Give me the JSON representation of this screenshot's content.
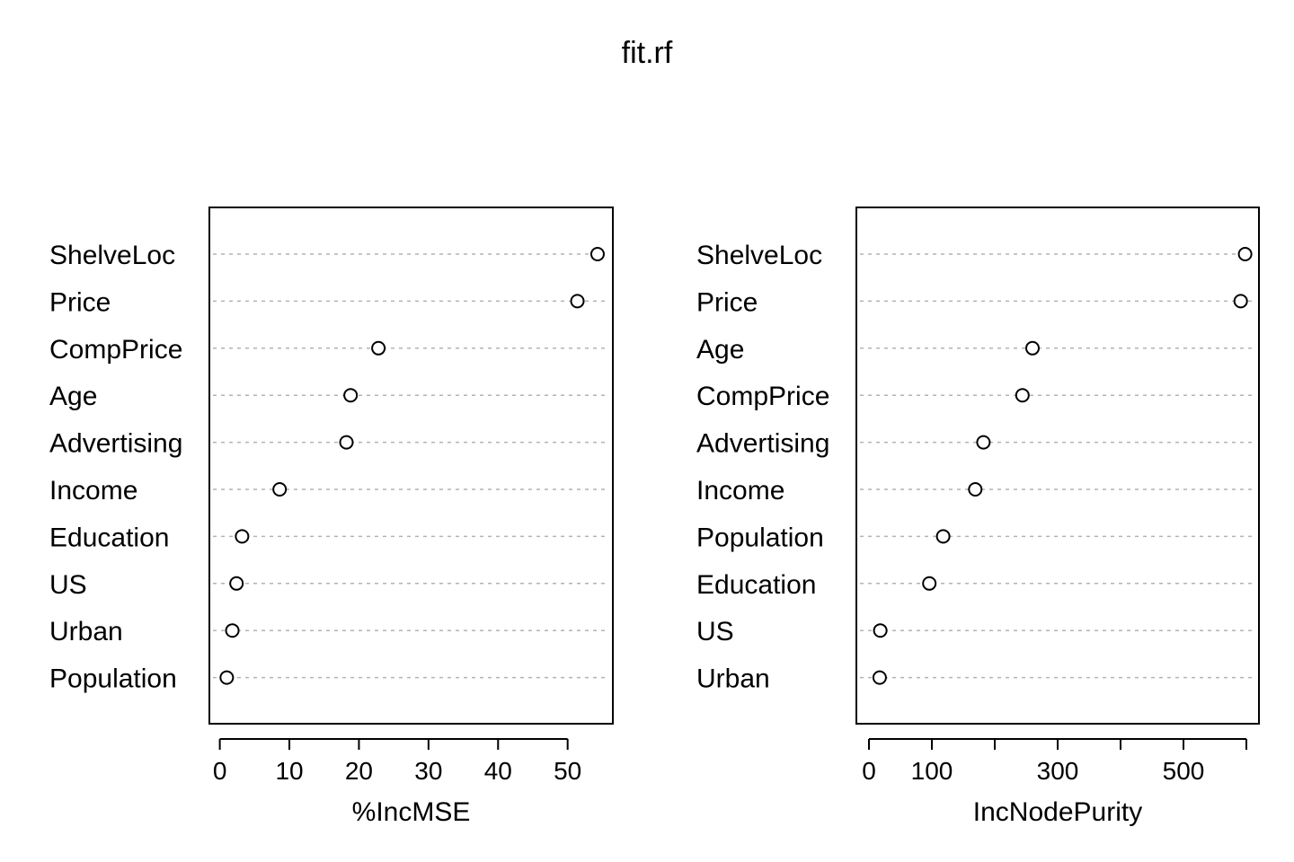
{
  "title": "fit.rf",
  "chart_data": [
    {
      "type": "dotchart",
      "xlabel": "%IncMSE",
      "xlim": [
        -1.5,
        56.5
      ],
      "xticks": [
        0,
        10,
        20,
        30,
        40,
        50
      ],
      "xtick_labels": [
        "0",
        "10",
        "20",
        "30",
        "40",
        "50"
      ],
      "grid": "dotted horizontal lines per variable",
      "variables": [
        "ShelveLoc",
        "Price",
        "CompPrice",
        "Age",
        "Advertising",
        "Income",
        "Education",
        "US",
        "Urban",
        "Population"
      ],
      "values": [
        54.3,
        51.4,
        22.8,
        18.8,
        18.2,
        8.6,
        3.2,
        2.4,
        1.8,
        1.0
      ]
    },
    {
      "type": "dotchart",
      "xlabel": "IncNodePurity",
      "xlim": [
        -20,
        620
      ],
      "xticks": [
        0,
        100,
        200,
        300,
        400,
        500,
        600
      ],
      "xtick_labels": [
        "0",
        "100",
        "",
        "300",
        "",
        "500",
        ""
      ],
      "grid": "dotted horizontal lines per variable",
      "variables": [
        "ShelveLoc",
        "Price",
        "Age",
        "CompPrice",
        "Advertising",
        "Income",
        "Population",
        "Education",
        "US",
        "Urban"
      ],
      "values": [
        598,
        591,
        260,
        244,
        182,
        169,
        118,
        96,
        18,
        17
      ]
    }
  ]
}
